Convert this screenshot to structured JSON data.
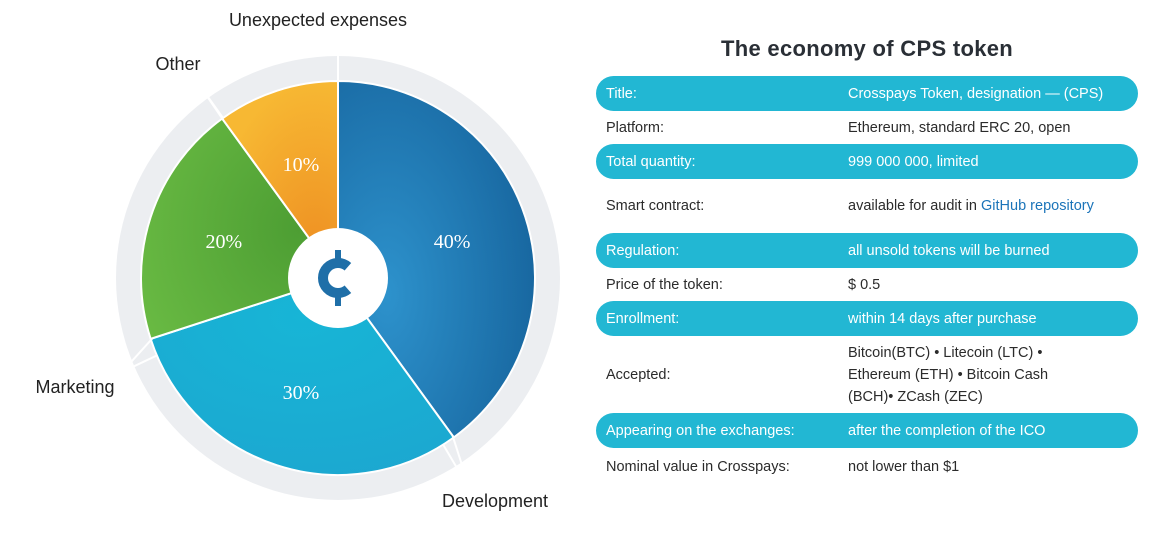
{
  "table": {
    "title": "The economy of CPS token",
    "rows": [
      {
        "key": "Title:",
        "value": "Crosspays Token, designation — (CPS)"
      },
      {
        "key": "Platform:",
        "value": "Ethereum, standard ERC 20, open"
      },
      {
        "key": "Total quantity:",
        "value": "999 000 000, limited"
      },
      {
        "key": "Smart contract:",
        "value_prefix": "available for audit in",
        "value_link": "GitHub repository"
      },
      {
        "key": "Regulation:",
        "value": "all unsold tokens will be burned"
      },
      {
        "key": "Price of the token:",
        "value": "$ 0.5"
      },
      {
        "key": "Enrollment:",
        "value": "within 14 days after purchase"
      },
      {
        "key": "Accepted:",
        "value_lines": [
          "Bitcoin(BTC) • Litecoin (LTC) •",
          "Ethereum (ETH) • Bitcoin Cash",
          "(BCH)• ZCash (ZEC)"
        ]
      },
      {
        "key": "Appearing on the exchanges:",
        "value": "after the completion of the ICO"
      },
      {
        "key": "Nominal value in Crosspays:",
        "value": "not lower than $1"
      }
    ],
    "highlight_color": "#22b7d3",
    "link_color": "#1b74b9"
  },
  "chart_data": {
    "type": "pie",
    "categories": [
      "Development",
      "Marketing",
      "Other",
      "Unexpected expenses"
    ],
    "values": [
      40,
      30,
      20,
      10
    ],
    "value_labels": [
      "40%",
      "30%",
      "20%",
      "10%"
    ],
    "category_labels": [
      "Development",
      "Marketing",
      "Other",
      "Unexpected expenses"
    ],
    "colors": [
      "#1a6ea8",
      "#17b2d4",
      "#57ad3a",
      "#f3a927"
    ],
    "center_icon": "cps-coin-icon",
    "legend": "none"
  }
}
